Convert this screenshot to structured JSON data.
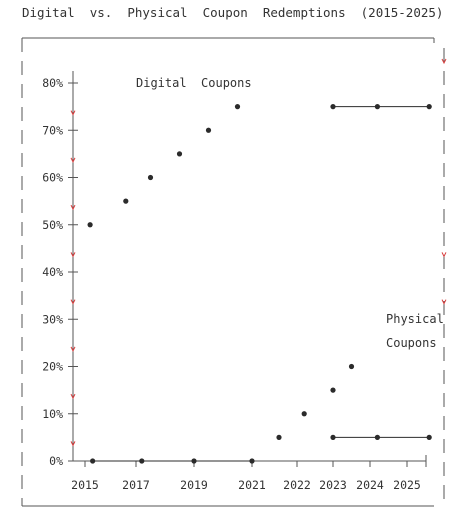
{
  "chart_data": {
    "type": "scatter",
    "title": "Digital  vs.  Physical  Coupon  Redemptions  (2015-2025)",
    "xlabel": "",
    "ylabel": "",
    "x_ticks": [
      "2015",
      "2017",
      "2019",
      "2021",
      "2022",
      "2023",
      "2024",
      "2025"
    ],
    "y_ticks": [
      "0%",
      "10%",
      "20%",
      "30%",
      "40%",
      "50%",
      "60%",
      "70%",
      "80%"
    ],
    "ylim": [
      0,
      80
    ],
    "grid": false,
    "annotations": [
      {
        "text": "Digital  Coupons",
        "near_series": 0
      },
      {
        "text": "Physical",
        "near_series": 1
      },
      {
        "text": "Coupons",
        "near_series": 1
      }
    ],
    "series": [
      {
        "name": "Digital Coupons",
        "color": "#2b2b2b",
        "points": [
          {
            "x": 2015.2,
            "y": 50
          },
          {
            "x": 2016.6,
            "y": 55
          },
          {
            "x": 2017.5,
            "y": 60
          },
          {
            "x": 2018.5,
            "y": 65
          },
          {
            "x": 2019.5,
            "y": 70
          },
          {
            "x": 2020.5,
            "y": 75
          },
          {
            "x": 2023.0,
            "y": 75
          },
          {
            "x": 2024.2,
            "y": 75
          },
          {
            "x": 2025.6,
            "y": 75
          }
        ],
        "segments": [
          [
            6,
            8
          ]
        ]
      },
      {
        "name": "Physical Coupons",
        "color": "#2b2b2b",
        "points": [
          {
            "x": 2015.3,
            "y": 0
          },
          {
            "x": 2017.2,
            "y": 0
          },
          {
            "x": 2019.0,
            "y": 0
          },
          {
            "x": 2021.0,
            "y": 0
          },
          {
            "x": 2021.6,
            "y": 5
          },
          {
            "x": 2022.2,
            "y": 10
          },
          {
            "x": 2023.0,
            "y": 15
          },
          {
            "x": 2023.5,
            "y": 20
          },
          {
            "x": 2023.0,
            "y": 5
          },
          {
            "x": 2024.2,
            "y": 5
          },
          {
            "x": 2025.6,
            "y": 5
          }
        ],
        "segments": [
          [
            0,
            3
          ],
          [
            8,
            10
          ]
        ]
      }
    ]
  }
}
